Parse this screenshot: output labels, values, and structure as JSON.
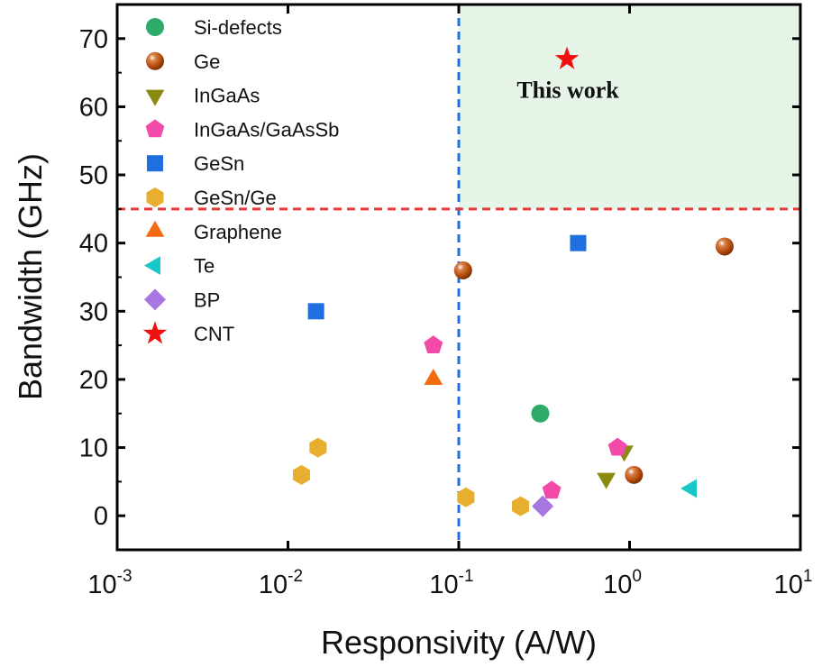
{
  "chart_data": {
    "type": "scatter",
    "xlabel": "Responsivity (A/W)",
    "ylabel": "Bandwidth (GHz)",
    "xscale": "log",
    "xlim": [
      0.001,
      10
    ],
    "ylim": [
      -5,
      75
    ],
    "x_ticks": [
      {
        "base": "10",
        "exp": "-3",
        "v": 0.001
      },
      {
        "base": "10",
        "exp": "-2",
        "v": 0.01
      },
      {
        "base": "10",
        "exp": "-1",
        "v": 0.1
      },
      {
        "base": "10",
        "exp": "0",
        "v": 1
      },
      {
        "base": "10",
        "exp": "1",
        "v": 10
      }
    ],
    "y_ticks": [
      "0",
      "10",
      "20",
      "30",
      "40",
      "50",
      "60",
      "70"
    ],
    "grid": false,
    "legend_position": "top-left",
    "reference_lines": {
      "vertical_x": 0.1,
      "vertical_color": "#1f6fe0",
      "horizontal_y": 45,
      "horizontal_color": "#e8393a",
      "highlight_region_color": "#e6f5e8"
    },
    "annotation": {
      "text": "This work",
      "x": 0.43,
      "y": 67
    },
    "series": [
      {
        "name": "Si-defects",
        "marker": "circle",
        "color": "#2eaa6a",
        "points": [
          [
            0.3,
            15
          ]
        ]
      },
      {
        "name": "Ge",
        "marker": "sphere",
        "color": "#b34a0a",
        "points": [
          [
            0.106,
            36
          ],
          [
            1.06,
            6
          ],
          [
            3.6,
            39.5
          ]
        ]
      },
      {
        "name": "InGaAs",
        "marker": "triangle-down",
        "color": "#8a8a10",
        "points": [
          [
            0.73,
            5.5
          ],
          [
            0.93,
            9.5
          ]
        ]
      },
      {
        "name": "InGaAs/GaAsSb",
        "marker": "pentagon",
        "color": "#f24aa8",
        "points": [
          [
            0.071,
            25
          ],
          [
            0.35,
            3.7
          ],
          [
            0.85,
            10
          ]
        ]
      },
      {
        "name": "GeSn",
        "marker": "square",
        "color": "#1f6fe0",
        "points": [
          [
            0.0146,
            30
          ],
          [
            0.5,
            40
          ]
        ]
      },
      {
        "name": "GeSn/Ge",
        "marker": "hexagon",
        "color": "#e8ae2e",
        "points": [
          [
            0.012,
            6
          ],
          [
            0.015,
            10
          ],
          [
            0.11,
            2.7
          ],
          [
            0.23,
            1.4
          ]
        ]
      },
      {
        "name": "Graphene",
        "marker": "triangle-up",
        "color": "#f26b10",
        "points": [
          [
            0.071,
            20
          ]
        ]
      },
      {
        "name": "Te",
        "marker": "triangle-left",
        "color": "#18c8c8",
        "points": [
          [
            2.3,
            4
          ]
        ]
      },
      {
        "name": "BP",
        "marker": "diamond",
        "color": "#a876e0",
        "points": [
          [
            0.31,
            1.4
          ]
        ]
      },
      {
        "name": "CNT",
        "marker": "star",
        "color": "#f01010",
        "points": [
          [
            0.43,
            67
          ]
        ]
      }
    ]
  }
}
